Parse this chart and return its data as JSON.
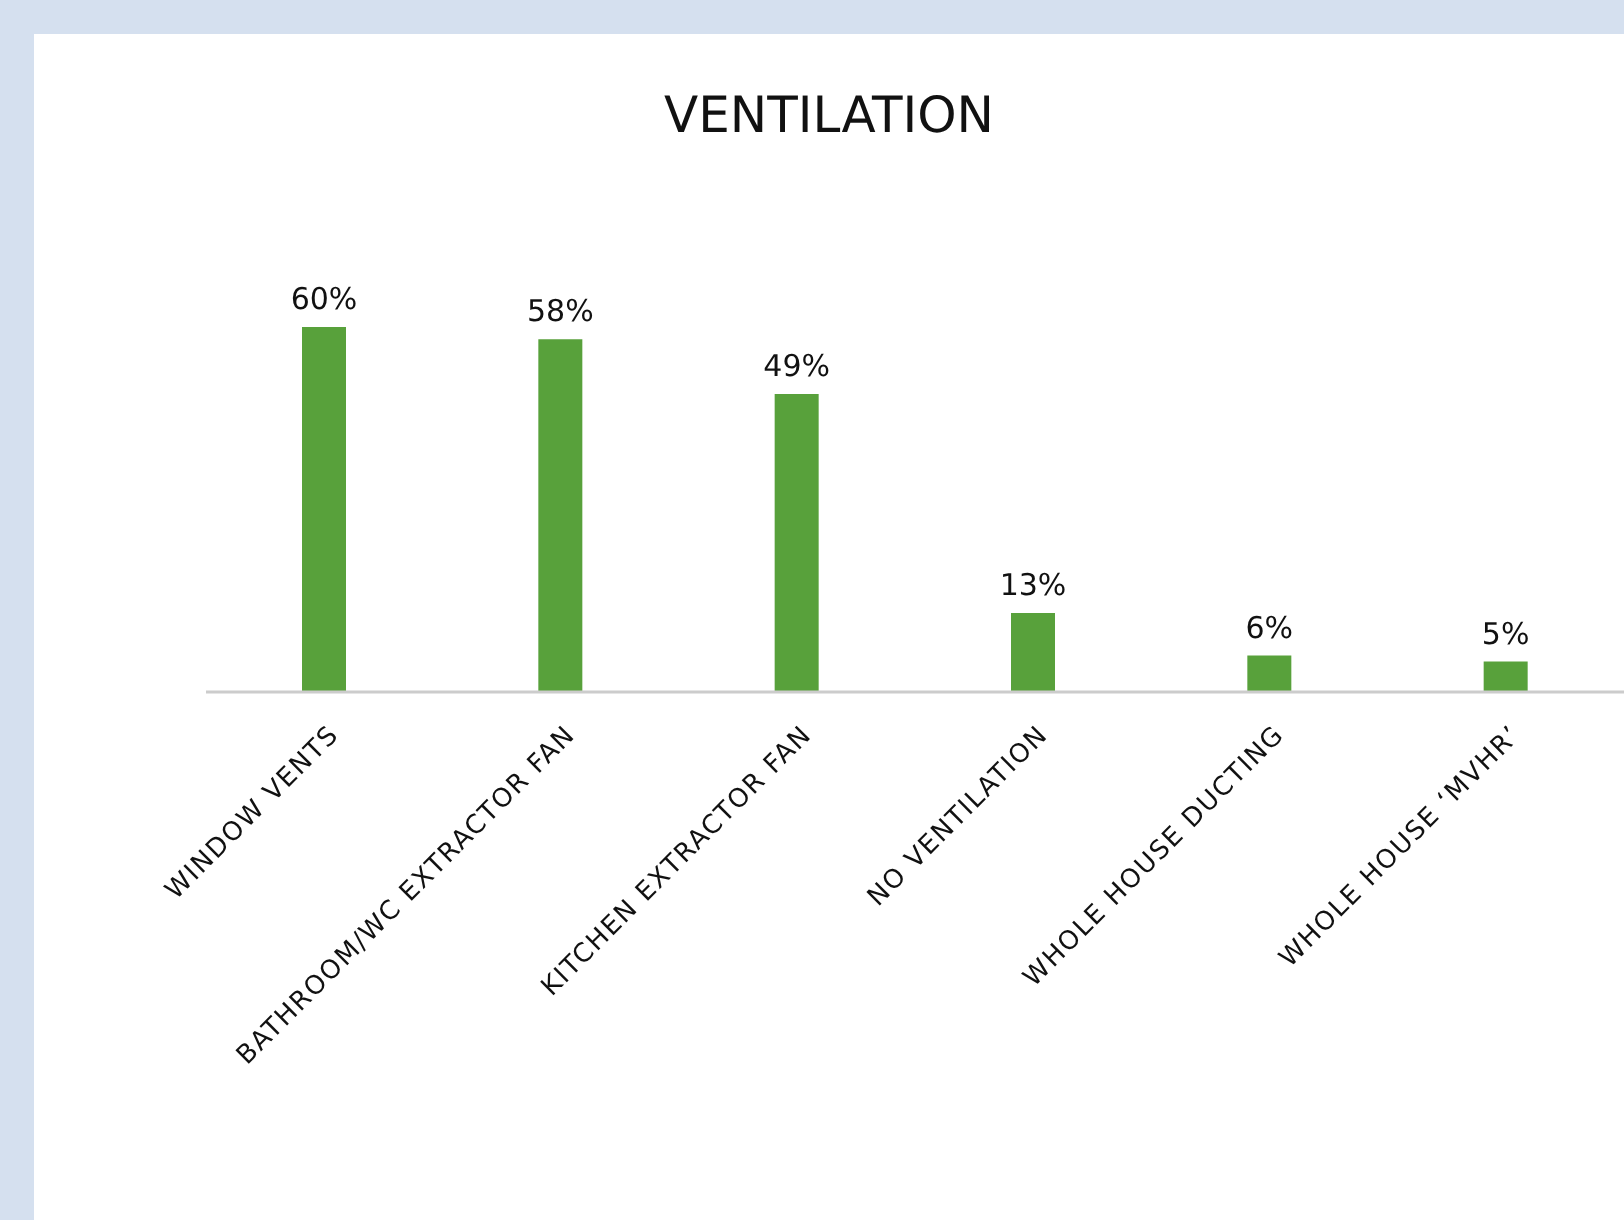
{
  "chart_data": {
    "type": "bar",
    "title": "VENTILATION",
    "categories": [
      "WINDOW VENTS",
      "BATHROOM/WC EXTRACTOR FAN",
      "KITCHEN EXTRACTOR FAN",
      "NO VENTILATION",
      "WHOLE HOUSE DUCTING",
      "WHOLE HOUSE ‘MVHR’"
    ],
    "values": [
      60,
      58,
      49,
      13,
      6,
      5
    ],
    "color": "#58a13b",
    "data_labels": true,
    "value_labels": [
      "60%",
      "58%",
      "49%",
      "13%",
      "6%",
      "5%"
    ]
  }
}
